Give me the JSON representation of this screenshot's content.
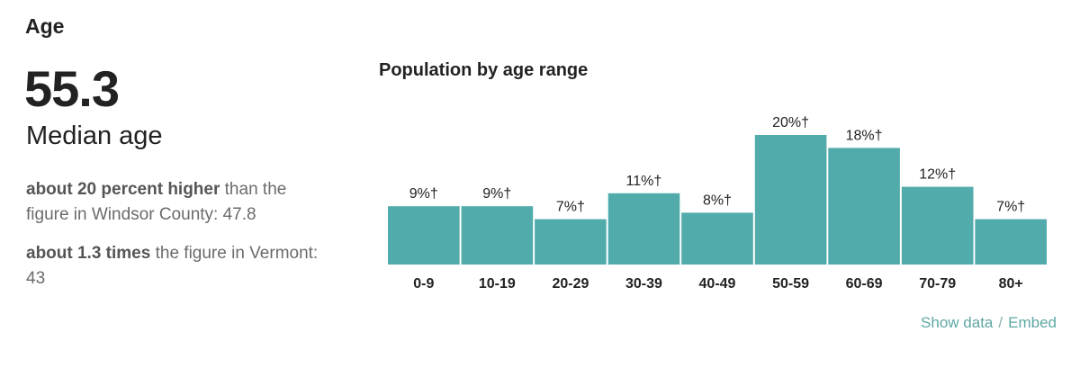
{
  "section": {
    "title": "Age"
  },
  "median": {
    "value": "55.3",
    "label": "Median age",
    "comparisons": [
      {
        "bold": "about 20 percent higher",
        "rest": " than the figure in Windsor County: 47.8"
      },
      {
        "bold": "about 1.3 times",
        "rest": " the figure in Vermont: 43"
      }
    ]
  },
  "links": {
    "show_data": "Show data",
    "separator": "/",
    "embed": "Embed"
  },
  "colors": {
    "bar": "#52abab",
    "link": "#5fa7a5"
  },
  "chart_data": {
    "type": "bar",
    "title": "Population by age range",
    "categories": [
      "0-9",
      "10-19",
      "20-29",
      "30-39",
      "40-49",
      "50-59",
      "60-69",
      "70-79",
      "80+"
    ],
    "values": [
      9,
      9,
      7,
      11,
      8,
      20,
      18,
      12,
      7
    ],
    "labels": [
      "9%†",
      "9%†",
      "7%†",
      "11%†",
      "8%†",
      "20%†",
      "18%†",
      "12%†",
      "7%†"
    ],
    "ylim": [
      0,
      20
    ],
    "xlabel": "",
    "ylabel": "",
    "grid": false
  }
}
